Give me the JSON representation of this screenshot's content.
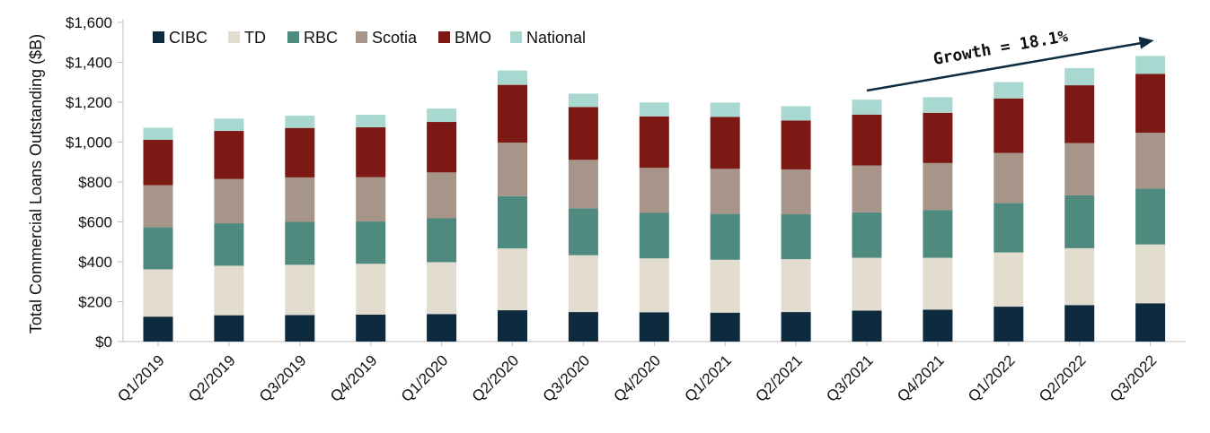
{
  "chart_data": {
    "type": "bar",
    "stacked": true,
    "title": "",
    "xlabel": "",
    "ylabel": "Total Commercial Loans Outstanding ($B)",
    "ylim": [
      0,
      1600
    ],
    "yticks": [
      0,
      200,
      400,
      600,
      800,
      1000,
      1200,
      1400,
      1600
    ],
    "ytick_labels": [
      "$0",
      "$200",
      "$400",
      "$600",
      "$800",
      "$1,000",
      "$1,200",
      "$1,400",
      "$1,600"
    ],
    "legend_position": "top-left",
    "grid": false,
    "categories": [
      "Q1/2019",
      "Q2/2019",
      "Q3/2019",
      "Q4/2019",
      "Q1/2020",
      "Q2/2020",
      "Q3/2020",
      "Q4/2020",
      "Q1/2021",
      "Q2/2021",
      "Q3/2021",
      "Q4/2021",
      "Q1/2022",
      "Q2/2022",
      "Q3/2022"
    ],
    "series": [
      {
        "name": "CIBC",
        "color": "#0d2a3f",
        "values": [
          125,
          132,
          133,
          135,
          138,
          157,
          148,
          147,
          145,
          148,
          155,
          160,
          175,
          183,
          192
        ]
      },
      {
        "name": "TD",
        "color": "#e2ddce",
        "values": [
          237,
          248,
          252,
          255,
          260,
          310,
          285,
          270,
          265,
          265,
          265,
          260,
          272,
          285,
          295
        ]
      },
      {
        "name": "RBC",
        "color": "#4e8a7e",
        "values": [
          212,
          213,
          215,
          212,
          220,
          262,
          235,
          228,
          230,
          225,
          228,
          240,
          247,
          265,
          280
        ]
      },
      {
        "name": "Scotia",
        "color": "#a8958a",
        "values": [
          210,
          222,
          223,
          222,
          230,
          268,
          243,
          226,
          226,
          225,
          235,
          235,
          252,
          262,
          280
        ]
      },
      {
        "name": "BMO",
        "color": "#7c1914",
        "values": [
          228,
          241,
          248,
          250,
          253,
          290,
          265,
          258,
          260,
          245,
          255,
          252,
          273,
          290,
          295
        ]
      },
      {
        "name": "National",
        "color": "#a9d8d0",
        "values": [
          60,
          62,
          62,
          63,
          67,
          72,
          67,
          70,
          72,
          72,
          75,
          78,
          82,
          86,
          90
        ]
      }
    ],
    "annotation": {
      "text": "Growth = 18.1%",
      "from_category": "Q3/2021",
      "to_category": "Q3/2022",
      "color": "#0d2a3f"
    }
  }
}
